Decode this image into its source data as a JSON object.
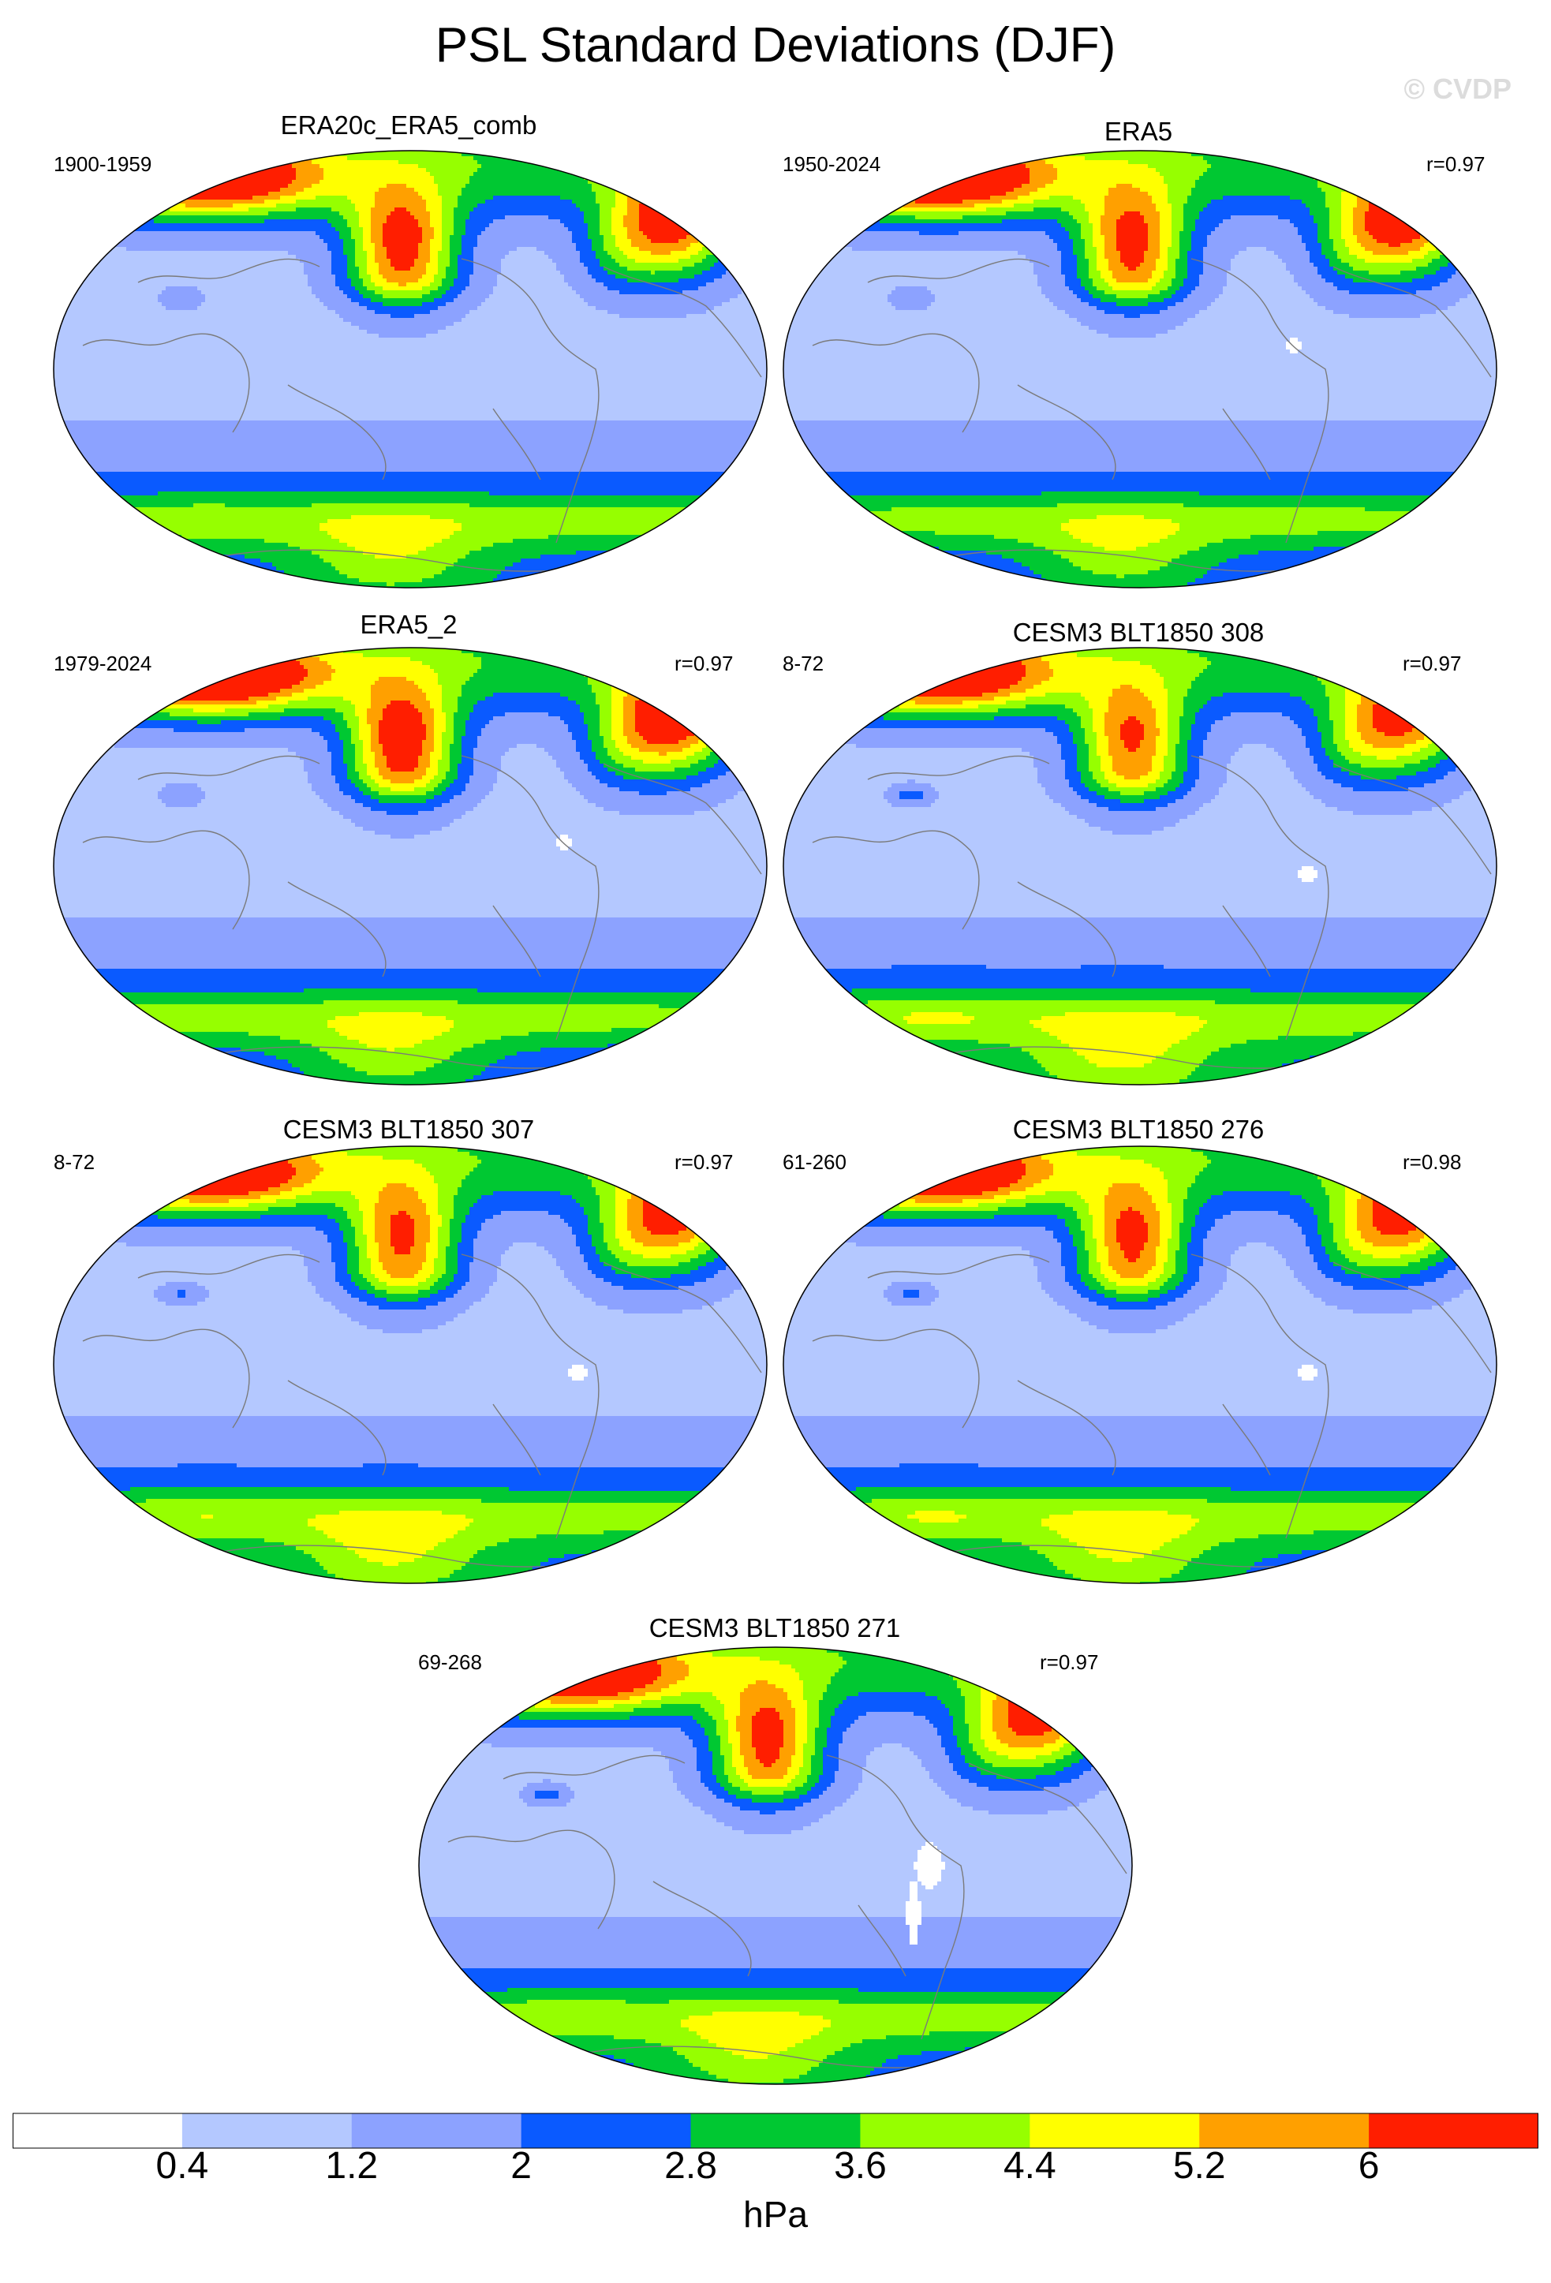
{
  "title": "PSL Standard Deviations (DJF)",
  "watermark": "© CVDP",
  "units": "hPa",
  "colorbar": {
    "labels": [
      "0.4",
      "1.2",
      "2",
      "2.8",
      "3.6",
      "4.4",
      "5.2",
      "6"
    ],
    "colors": [
      "#ffffff",
      "#b4c8ff",
      "#8ca2ff",
      "#0a5aff",
      "#00c832",
      "#96ff00",
      "#ffff00",
      "#ffa000",
      "#ff1e00"
    ]
  },
  "panels": [
    {
      "title": "ERA20c_ERA5_comb",
      "range": "1900-1959",
      "corr": ""
    },
    {
      "title": "ERA5",
      "range": "1950-2024",
      "corr": "r=0.97"
    },
    {
      "title": "ERA5_2",
      "range": "1979-2024",
      "corr": "r=0.97"
    },
    {
      "title": "CESM3 BLT1850 308",
      "range": "8-72",
      "corr": "r=0.97"
    },
    {
      "title": "CESM3 BLT1850 307",
      "range": "8-72",
      "corr": "r=0.97"
    },
    {
      "title": "CESM3 BLT1850 276",
      "range": "61-260",
      "corr": "r=0.98"
    },
    {
      "title": "CESM3 BLT1850 271",
      "range": "69-268",
      "corr": "r=0.97"
    }
  ]
}
